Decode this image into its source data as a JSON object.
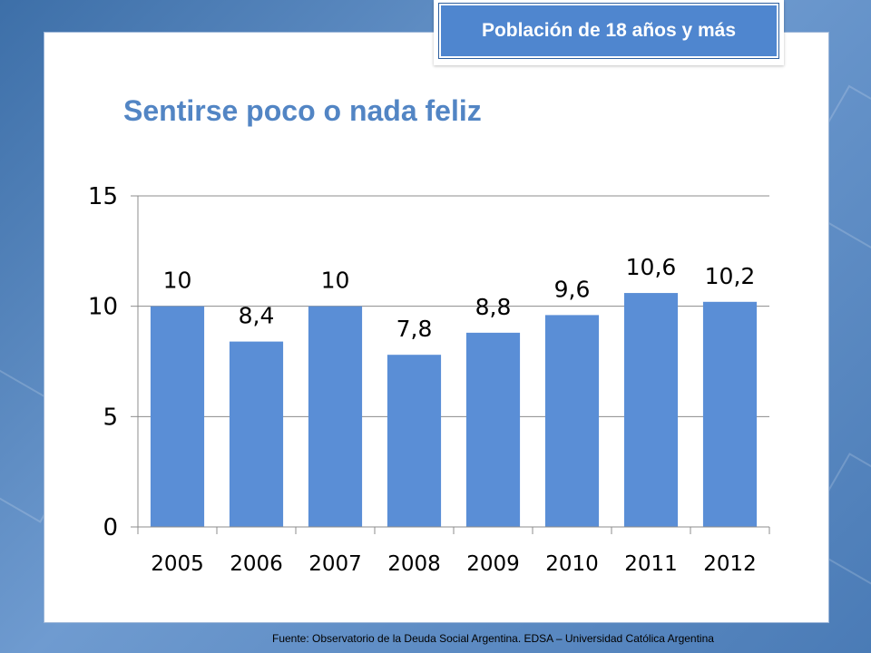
{
  "badge": {
    "text": "Población de 18 años y más"
  },
  "title": "Sentirse poco o nada feliz",
  "footer": "Fuente:   Observatorio de  la Deuda Social Argentina. EDSA  – Universidad Católica Argentina",
  "colors": {
    "bar": "#5a8ed6",
    "accent": "#5285c4",
    "background": "#4a7bb6"
  },
  "chart_data": {
    "type": "bar",
    "title": "",
    "xlabel": "",
    "ylabel": "",
    "categories": [
      "2005",
      "2006",
      "2007",
      "2008",
      "2009",
      "2010",
      "2011",
      "2012"
    ],
    "values": [
      10,
      8.4,
      10,
      7.8,
      8.8,
      9.6,
      10.6,
      10.2
    ],
    "data_labels": [
      "10",
      "8,4",
      "10",
      "7,8",
      "8,8",
      "9,6",
      "10,6",
      "10,2"
    ],
    "ylim": [
      0,
      15
    ],
    "yticks": [
      0,
      5,
      10,
      15
    ],
    "grid": true,
    "legend": "none"
  }
}
